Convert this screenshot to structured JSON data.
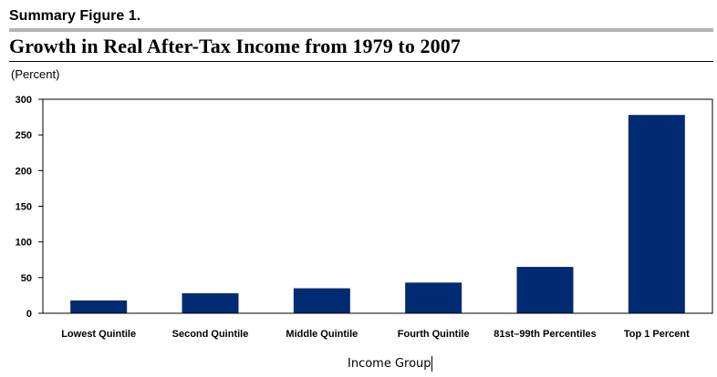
{
  "header": {
    "figure_label": "Summary Figure 1.",
    "title": "Growth in Real After-Tax Income from 1979 to 2007",
    "unit_label": "(Percent)"
  },
  "colors": {
    "bar": "#002b72",
    "frame": "#000000",
    "rule": "#b3b3b3"
  },
  "chart_data": {
    "type": "bar",
    "title": "Growth in Real After-Tax Income from 1979 to 2007",
    "xlabel": "Income Group",
    "ylabel": "(Percent)",
    "categories": [
      "Lowest Quintile",
      "Second Quintile",
      "Middle Quintile",
      "Fourth Quintile",
      "81st–99th Percentiles",
      "Top 1 Percent"
    ],
    "values": [
      18,
      28,
      35,
      43,
      65,
      278
    ],
    "ylim": [
      0,
      300
    ],
    "yticks": [
      0,
      50,
      100,
      150,
      200,
      250,
      300
    ],
    "grid": false,
    "legend": "none"
  }
}
